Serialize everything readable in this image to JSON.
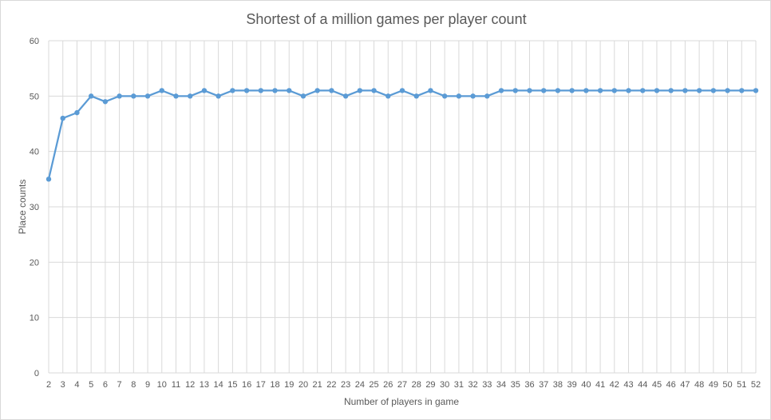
{
  "chart_data": {
    "type": "line",
    "title": "Shortest of a million games per player count",
    "xlabel": "Number  of players in game",
    "ylabel": "Place counts",
    "x": [
      2,
      3,
      4,
      5,
      6,
      7,
      8,
      9,
      10,
      11,
      12,
      13,
      14,
      15,
      16,
      17,
      18,
      19,
      20,
      21,
      22,
      23,
      24,
      25,
      26,
      27,
      28,
      29,
      30,
      31,
      32,
      33,
      34,
      35,
      36,
      37,
      38,
      39,
      40,
      41,
      42,
      43,
      44,
      45,
      46,
      47,
      48,
      49,
      50,
      51,
      52
    ],
    "ylim": [
      0,
      60
    ],
    "yticks": [
      0,
      10,
      20,
      30,
      40,
      50,
      60
    ],
    "grid": "vertical and horizontal",
    "series": [
      {
        "values": [
          35,
          46,
          47,
          50,
          49,
          50,
          50,
          50,
          51,
          50,
          50,
          51,
          50,
          51,
          51,
          51,
          51,
          51,
          50,
          51,
          51,
          50,
          51,
          51,
          50,
          51,
          50,
          51,
          50,
          50,
          50,
          50,
          51,
          51,
          51,
          51,
          51,
          51,
          51,
          51,
          51,
          51,
          51,
          51,
          51,
          51,
          51,
          51,
          51,
          51,
          51
        ],
        "color": "#5b9bd5"
      }
    ]
  }
}
